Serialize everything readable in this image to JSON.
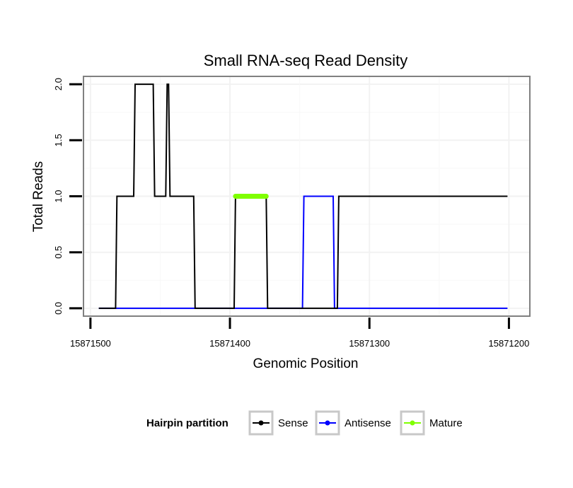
{
  "chart_data": {
    "type": "line",
    "title": "Small RNA-seq Read Density",
    "xlabel": "Genomic Position",
    "ylabel": "Total Reads",
    "xlim": [
      15871505,
      15871185
    ],
    "ylim": [
      -0.07,
      2.07
    ],
    "x_reversed": true,
    "grid": true,
    "x_ticks": [
      15871500,
      15871400,
      15871300,
      15871200
    ],
    "x_tick_labels": [
      "15871500",
      "15871400",
      "15871300",
      "15871200"
    ],
    "y_ticks": [
      0,
      0.5,
      1,
      1.5,
      2
    ],
    "y_tick_labels": [
      "0.0",
      "0.5",
      "1.0",
      "1.5",
      "2.0"
    ],
    "legend": {
      "title": "Hairpin partition",
      "position": "bottom",
      "entries": [
        {
          "name": "Sense",
          "color": "#000000"
        },
        {
          "name": "Antisense",
          "color": "#0000ff"
        },
        {
          "name": "Mature",
          "color": "#7fff00"
        }
      ]
    },
    "series": [
      {
        "name": "Antisense",
        "color": "#0000ff",
        "x": [
          15871494,
          15871348,
          15871347,
          15871326,
          15871325,
          15871201
        ],
        "y": [
          0,
          0,
          1,
          1,
          0,
          0
        ]
      },
      {
        "name": "Sense",
        "color": "#000000",
        "x": [
          15871494,
          15871482,
          15871481,
          15871469,
          15871468,
          15871455,
          15871454,
          15871446,
          15871445,
          15871444,
          15871443,
          15871426,
          15871425,
          15871397,
          15871396,
          15871374,
          15871373,
          15871326,
          15871325,
          15871323,
          15871322,
          15871201
        ],
        "y": [
          0,
          0,
          1,
          1,
          2,
          2,
          1,
          1,
          2,
          2,
          1,
          1,
          0,
          0,
          1,
          1,
          0,
          0,
          0,
          0,
          1,
          1
        ]
      },
      {
        "name": "Mature",
        "color": "#7fff00",
        "x": [
          15871396,
          15871374
        ],
        "y": [
          1,
          1
        ]
      }
    ]
  }
}
